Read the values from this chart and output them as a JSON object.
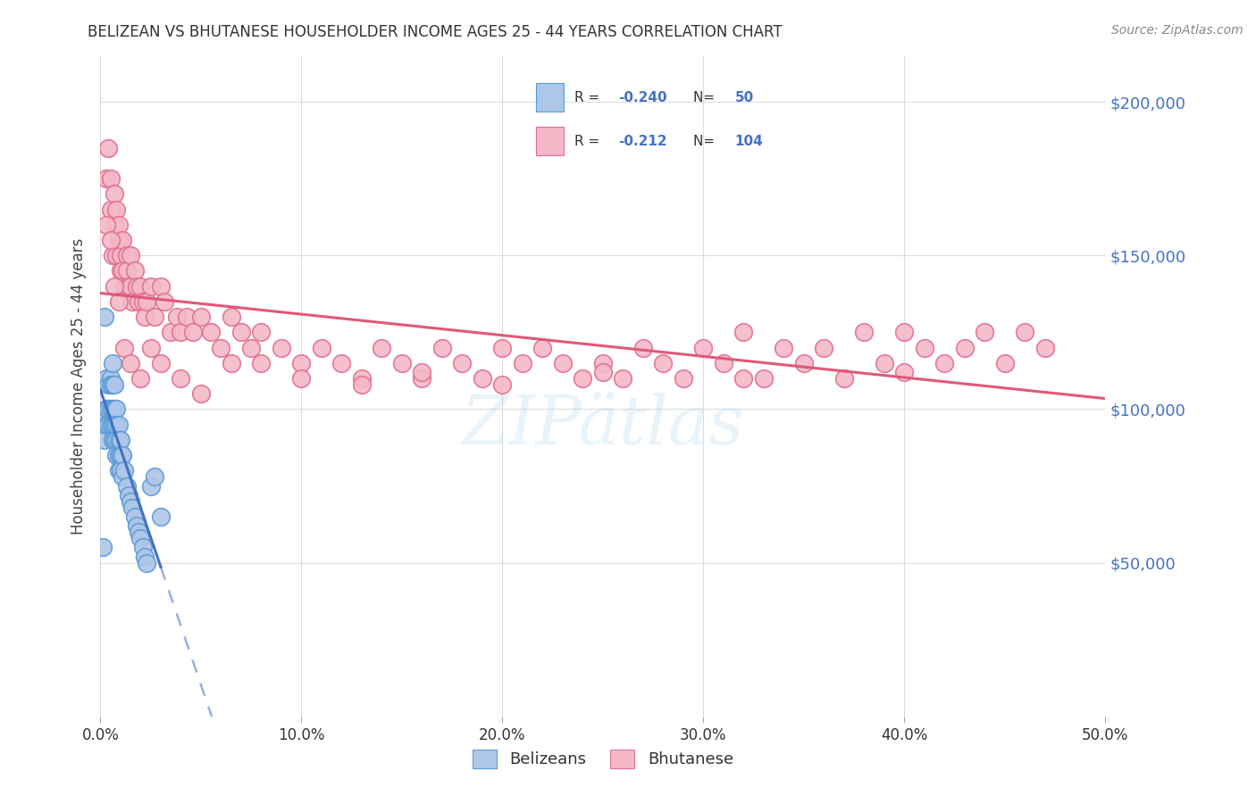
{
  "title": "BELIZEAN VS BHUTANESE HOUSEHOLDER INCOME AGES 25 - 44 YEARS CORRELATION CHART",
  "source": "Source: ZipAtlas.com",
  "ylabel": "Householder Income Ages 25 - 44 years",
  "xlim": [
    0.0,
    0.5
  ],
  "ylim": [
    0,
    215000
  ],
  "xtick_labels": [
    "0.0%",
    "10.0%",
    "20.0%",
    "30.0%",
    "40.0%",
    "50.0%"
  ],
  "xtick_vals": [
    0.0,
    0.1,
    0.2,
    0.3,
    0.4,
    0.5
  ],
  "ytick_vals": [
    50000,
    100000,
    150000,
    200000
  ],
  "ytick_labels_right": [
    "$50,000",
    "$100,000",
    "$150,000",
    "$200,000"
  ],
  "R_belizean": -0.24,
  "N_belizean": 50,
  "R_bhutanese": -0.212,
  "N_bhutanese": 104,
  "color_belizean_fill": "#aec6e8",
  "color_belizean_edge": "#5b9bd5",
  "color_bhutanese_fill": "#f4b8c8",
  "color_bhutanese_edge": "#e07090",
  "color_blue_line": "#4472c4",
  "color_pink_line": "#e05878",
  "color_right_axis": "#4472c4",
  "background_color": "#ffffff",
  "grid_color": "#d9d9d9",
  "belizean_x": [
    0.001,
    0.002,
    0.002,
    0.003,
    0.003,
    0.003,
    0.004,
    0.004,
    0.004,
    0.005,
    0.005,
    0.005,
    0.005,
    0.006,
    0.006,
    0.006,
    0.006,
    0.006,
    0.007,
    0.007,
    0.007,
    0.007,
    0.008,
    0.008,
    0.008,
    0.008,
    0.009,
    0.009,
    0.009,
    0.009,
    0.01,
    0.01,
    0.01,
    0.011,
    0.011,
    0.012,
    0.013,
    0.014,
    0.015,
    0.016,
    0.017,
    0.018,
    0.019,
    0.02,
    0.021,
    0.022,
    0.023,
    0.025,
    0.027,
    0.03
  ],
  "belizean_y": [
    55000,
    130000,
    90000,
    110000,
    100000,
    95000,
    108000,
    100000,
    95000,
    110000,
    108000,
    100000,
    95000,
    115000,
    108000,
    100000,
    95000,
    90000,
    108000,
    100000,
    95000,
    90000,
    100000,
    95000,
    90000,
    85000,
    95000,
    90000,
    85000,
    80000,
    90000,
    85000,
    80000,
    85000,
    78000,
    80000,
    75000,
    72000,
    70000,
    68000,
    65000,
    62000,
    60000,
    58000,
    55000,
    52000,
    50000,
    75000,
    78000,
    65000
  ],
  "bhutanese_x": [
    0.003,
    0.004,
    0.005,
    0.005,
    0.006,
    0.007,
    0.007,
    0.008,
    0.008,
    0.009,
    0.009,
    0.01,
    0.01,
    0.011,
    0.011,
    0.012,
    0.013,
    0.013,
    0.014,
    0.015,
    0.015,
    0.016,
    0.017,
    0.018,
    0.019,
    0.02,
    0.021,
    0.022,
    0.023,
    0.025,
    0.027,
    0.03,
    0.032,
    0.035,
    0.038,
    0.04,
    0.043,
    0.046,
    0.05,
    0.055,
    0.06,
    0.065,
    0.07,
    0.075,
    0.08,
    0.09,
    0.1,
    0.11,
    0.12,
    0.13,
    0.14,
    0.15,
    0.16,
    0.17,
    0.18,
    0.19,
    0.2,
    0.21,
    0.22,
    0.23,
    0.24,
    0.25,
    0.26,
    0.27,
    0.28,
    0.29,
    0.3,
    0.31,
    0.32,
    0.33,
    0.34,
    0.35,
    0.36,
    0.37,
    0.38,
    0.39,
    0.4,
    0.41,
    0.42,
    0.43,
    0.44,
    0.45,
    0.46,
    0.47,
    0.003,
    0.005,
    0.007,
    0.009,
    0.012,
    0.015,
    0.02,
    0.025,
    0.03,
    0.04,
    0.05,
    0.065,
    0.08,
    0.1,
    0.13,
    0.16,
    0.2,
    0.25,
    0.32,
    0.4
  ],
  "bhutanese_y": [
    175000,
    185000,
    165000,
    175000,
    150000,
    160000,
    170000,
    165000,
    150000,
    155000,
    160000,
    145000,
    150000,
    155000,
    145000,
    140000,
    150000,
    145000,
    140000,
    150000,
    140000,
    135000,
    145000,
    140000,
    135000,
    140000,
    135000,
    130000,
    135000,
    140000,
    130000,
    140000,
    135000,
    125000,
    130000,
    125000,
    130000,
    125000,
    130000,
    125000,
    120000,
    130000,
    125000,
    120000,
    125000,
    120000,
    115000,
    120000,
    115000,
    110000,
    120000,
    115000,
    110000,
    120000,
    115000,
    110000,
    120000,
    115000,
    120000,
    115000,
    110000,
    115000,
    110000,
    120000,
    115000,
    110000,
    120000,
    115000,
    125000,
    110000,
    120000,
    115000,
    120000,
    110000,
    125000,
    115000,
    125000,
    120000,
    115000,
    120000,
    125000,
    115000,
    125000,
    120000,
    160000,
    155000,
    140000,
    135000,
    120000,
    115000,
    110000,
    120000,
    115000,
    110000,
    105000,
    115000,
    115000,
    110000,
    108000,
    112000,
    108000,
    112000,
    110000,
    112000
  ]
}
